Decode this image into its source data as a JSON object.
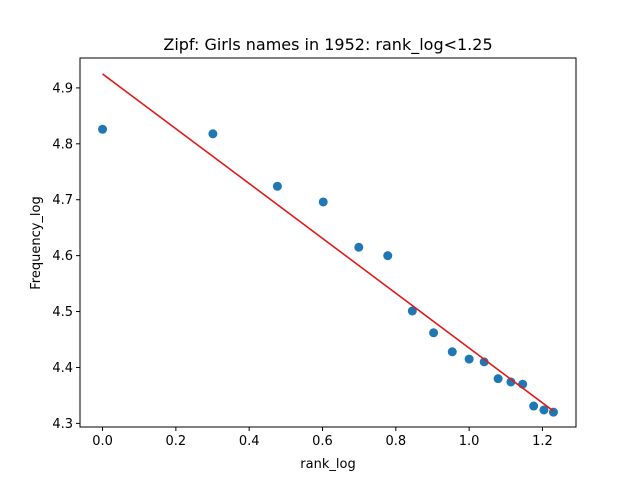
{
  "chart_data": {
    "type": "scatter",
    "title": "Zipf: Girls names in 1952: rank_log<1.25",
    "xlabel": "rank_log",
    "ylabel": "Frequency_log",
    "xlim": [
      -0.0615,
      1.2915
    ],
    "ylim": [
      4.2935,
      4.9535
    ],
    "xticks": [
      0.0,
      0.2,
      0.4,
      0.6,
      0.8,
      1.0,
      1.2
    ],
    "xtick_labels": [
      "0.0",
      "0.2",
      "0.4",
      "0.6",
      "0.8",
      "1.0",
      "1.2"
    ],
    "yticks": [
      4.3,
      4.4,
      4.5,
      4.6,
      4.7,
      4.8,
      4.9
    ],
    "ytick_labels": [
      "4.3",
      "4.4",
      "4.5",
      "4.6",
      "4.7",
      "4.8",
      "4.9"
    ],
    "grid": false,
    "series": [
      {
        "kind": "scatter",
        "color": "#1f77b4",
        "points": [
          {
            "x": 0.0,
            "y": 4.826
          },
          {
            "x": 0.301,
            "y": 4.818
          },
          {
            "x": 0.477,
            "y": 4.724
          },
          {
            "x": 0.602,
            "y": 4.696
          },
          {
            "x": 0.699,
            "y": 4.615
          },
          {
            "x": 0.778,
            "y": 4.6
          },
          {
            "x": 0.845,
            "y": 4.501
          },
          {
            "x": 0.903,
            "y": 4.462
          },
          {
            "x": 0.954,
            "y": 4.428
          },
          {
            "x": 1.0,
            "y": 4.415
          },
          {
            "x": 1.041,
            "y": 4.41
          },
          {
            "x": 1.079,
            "y": 4.38
          },
          {
            "x": 1.114,
            "y": 4.374
          },
          {
            "x": 1.146,
            "y": 4.37
          },
          {
            "x": 1.176,
            "y": 4.331
          },
          {
            "x": 1.204,
            "y": 4.324
          },
          {
            "x": 1.23,
            "y": 4.32
          }
        ]
      },
      {
        "kind": "line",
        "color": "#e31a1c",
        "points": [
          {
            "x": 0.0,
            "y": 4.925
          },
          {
            "x": 1.23,
            "y": 4.322
          }
        ]
      }
    ]
  }
}
